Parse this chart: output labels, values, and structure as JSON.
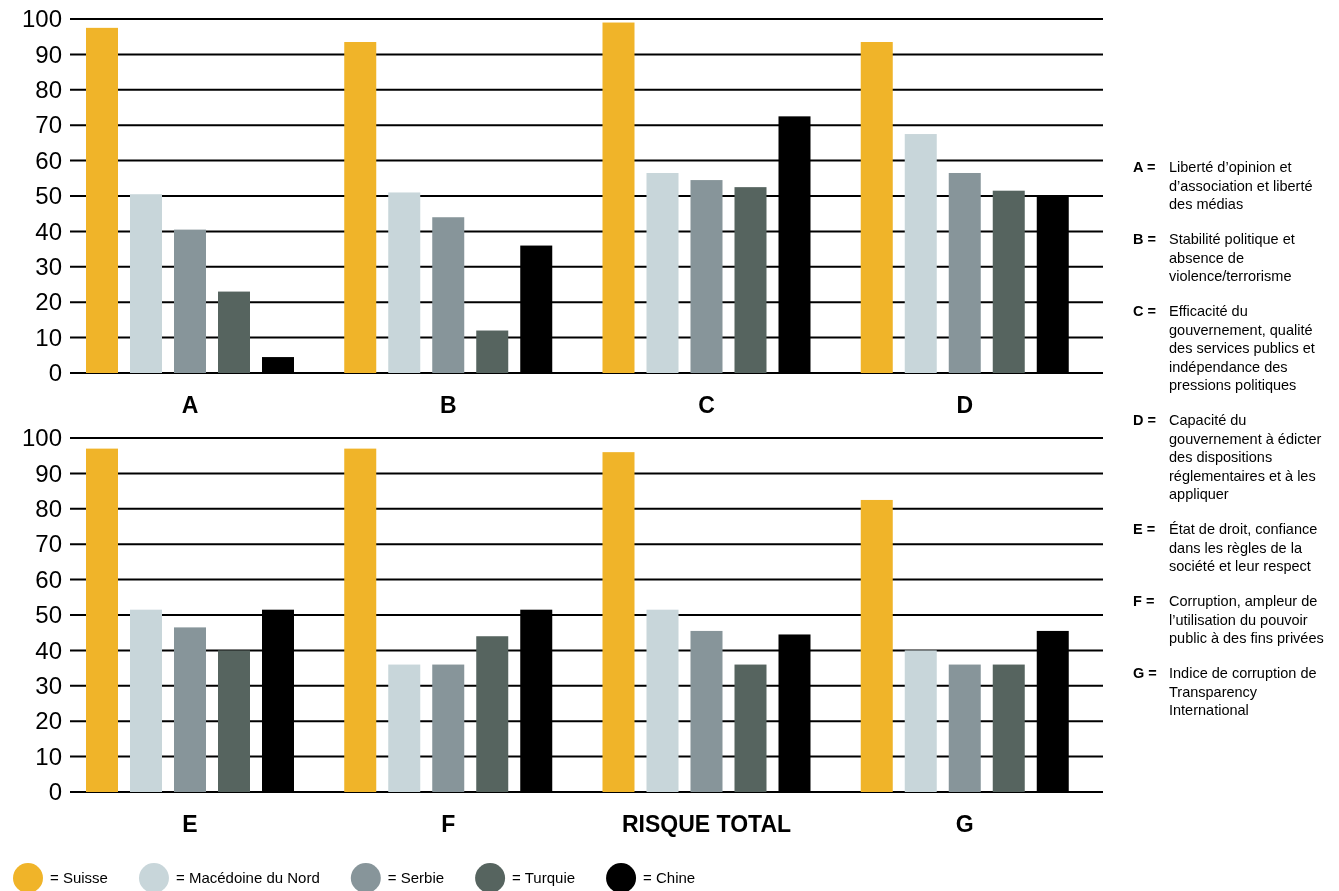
{
  "chart_data": [
    {
      "type": "bar",
      "categories": [
        "A",
        "B",
        "C",
        "D"
      ],
      "ylim": [
        0,
        100
      ],
      "yticks": [
        0,
        10,
        20,
        30,
        40,
        50,
        60,
        70,
        80,
        90,
        100
      ],
      "grid": "y",
      "legend": false,
      "series": [
        {
          "color": "#f0b429",
          "values": [
            97.5,
            93.5,
            99,
            93.5
          ]
        },
        {
          "color": "#c8d6da",
          "values": [
            50.5,
            51,
            56.5,
            67.5
          ]
        },
        {
          "color": "#87959a",
          "values": [
            40.5,
            44,
            54.5,
            56.5
          ]
        },
        {
          "color": "#56645f",
          "values": [
            23,
            12,
            52.5,
            51.5
          ]
        },
        {
          "color": "#000000",
          "values": [
            4.5,
            36,
            72.5,
            50
          ]
        }
      ]
    },
    {
      "type": "bar",
      "categories": [
        "E",
        "F",
        "RISQUE TOTAL",
        "G"
      ],
      "ylim": [
        0,
        100
      ],
      "yticks": [
        0,
        10,
        20,
        30,
        40,
        50,
        60,
        70,
        80,
        90,
        100
      ],
      "grid": "y",
      "legend": "bottom",
      "series": [
        {
          "name": "= Suisse",
          "color": "#f0b429",
          "values": [
            97,
            97,
            96,
            82.5
          ]
        },
        {
          "name": "= Macédoine du Nord",
          "color": "#c8d6da",
          "values": [
            51.5,
            36,
            51.5,
            40
          ]
        },
        {
          "name": "= Serbie",
          "color": "#87959a",
          "values": [
            46.5,
            36,
            45.5,
            36
          ]
        },
        {
          "name": "= Turquie",
          "color": "#56645f",
          "values": [
            40,
            44,
            36,
            36
          ]
        },
        {
          "name": "= Chine",
          "color": "#000000",
          "values": [
            51.5,
            51.5,
            44.5,
            45.5
          ]
        }
      ]
    },
    {
      "type": "other",
      "annotations": [
        "A = Liberté d’opinion et d’association et liberté des médias",
        "B = Stabilité politique et absence de violence/terrorisme",
        "C = Efficacité du gouvernement, qualité des services publics et indépendance des pressions politiques",
        "D = Capacité du gouvernement à édicter des dispositions réglementaires et à les appliquer",
        "E = État de droit, confiance dans les règles de la société et leur respect",
        "F = Corruption, ampleur de l’utilisation du pouvoir public à des fins privées",
        "G = Indice de corruption de Transparency International"
      ]
    }
  ]
}
